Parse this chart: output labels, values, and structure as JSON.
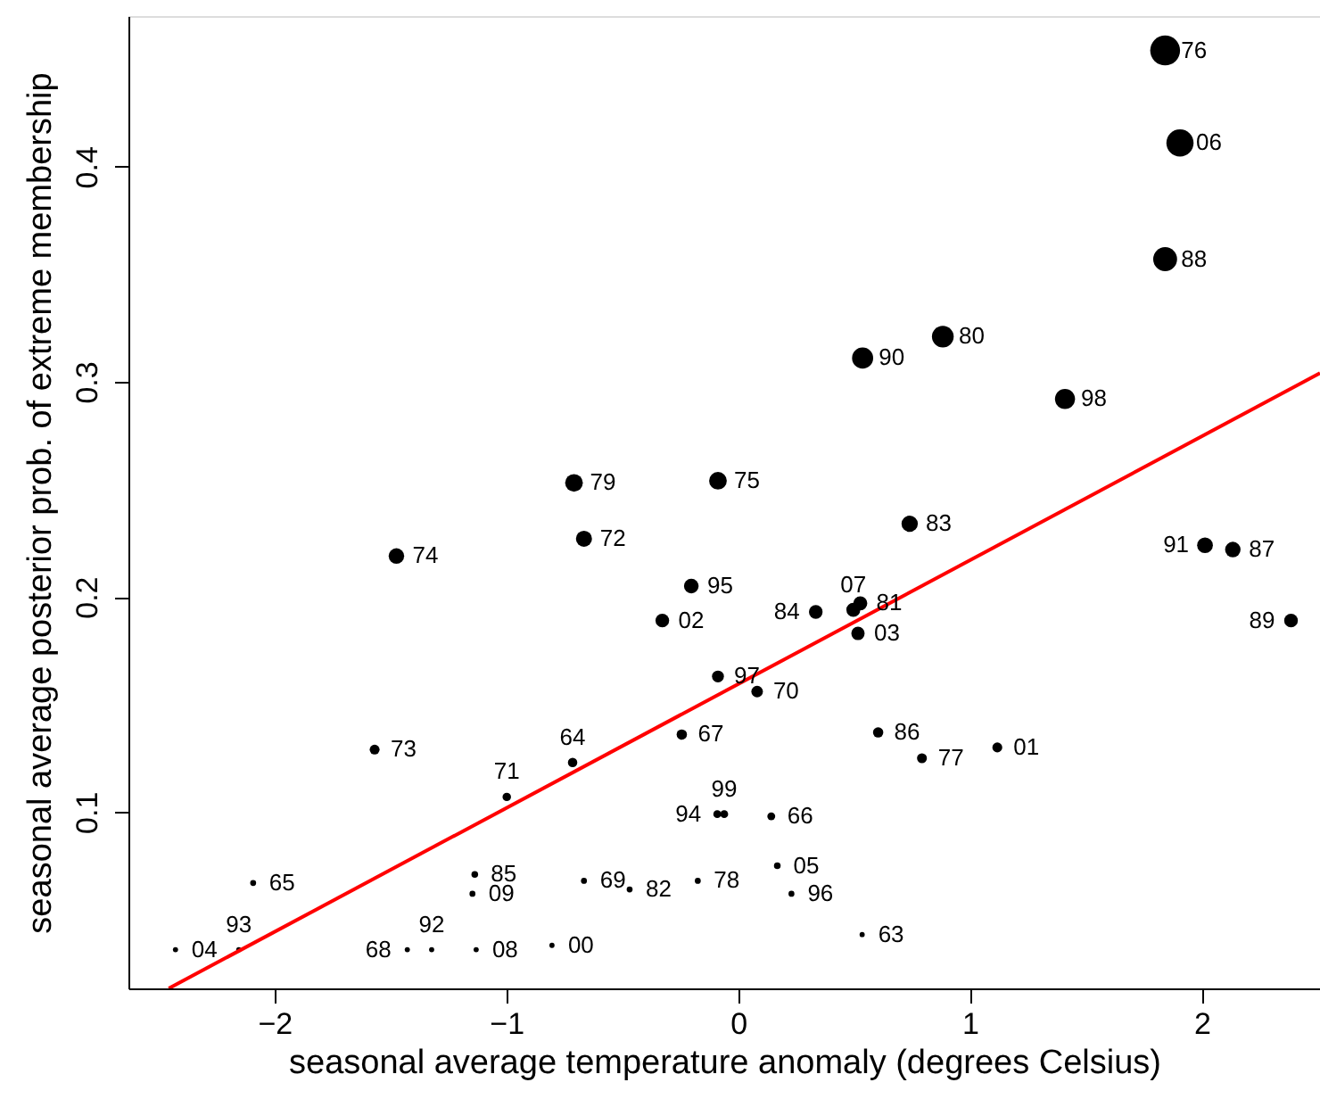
{
  "chart_data": {
    "type": "bubble",
    "xlabel": "seasonal average temperature anomaly (degrees Celsius)",
    "ylabel": "seasonal average posterior prob. of extreme membership",
    "xlim": [
      -2.63,
      2.51
    ],
    "ylim": [
      0.018,
      0.47
    ],
    "xticks": [
      -2,
      -1,
      0,
      1,
      2
    ],
    "yticks": [
      0.1,
      0.2,
      0.3,
      0.4
    ],
    "grid": false,
    "series": [
      {
        "color": "#000000",
        "marker": "circle",
        "x": [
          1.842,
          1.906,
          1.842,
          0.883,
          0.537,
          1.41,
          -0.087,
          -0.708,
          0.74,
          -0.665,
          -1.474,
          2.014,
          2.134,
          -0.202,
          0.497,
          0.527,
          0.335,
          -0.327,
          2.385,
          0.517,
          -0.087,
          0.082,
          0.604,
          -0.243,
          1.118,
          -1.568,
          0.793,
          -0.714,
          -0.998,
          -0.06,
          -0.09,
          0.143,
          0.169,
          -1.136,
          -0.665,
          -0.174,
          -2.092,
          -0.468,
          -1.146,
          0.23,
          0.535,
          -0.803,
          -2.427,
          -1.322,
          -2.154,
          -1.427,
          -1.13
        ],
        "values": [
          0.454,
          0.411,
          0.357,
          0.321,
          0.311,
          0.292,
          0.254,
          0.253,
          0.234,
          0.227,
          0.219,
          0.224,
          0.222,
          0.205,
          0.194,
          0.197,
          0.193,
          0.189,
          0.189,
          0.183,
          0.163,
          0.156,
          0.137,
          0.136,
          0.13,
          0.129,
          0.125,
          0.123,
          0.107,
          0.099,
          0.099,
          0.098,
          0.075,
          0.071,
          0.068,
          0.068,
          0.067,
          0.064,
          0.062,
          0.062,
          0.043,
          0.038,
          0.036,
          0.036,
          0.036,
          0.036,
          0.036
        ],
        "sizes": [
          1,
          0.83,
          0.64,
          0.53,
          0.5,
          0.45,
          0.35,
          0.35,
          0.3,
          0.29,
          0.27,
          0.28,
          0.27,
          0.24,
          0.22,
          0.22,
          0.21,
          0.21,
          0.21,
          0.2,
          0.16,
          0.15,
          0.12,
          0.12,
          0.11,
          0.11,
          0.11,
          0.1,
          0.08,
          0.07,
          0.07,
          0.07,
          0.05,
          0.05,
          0.04,
          0.04,
          0.04,
          0.04,
          0.04,
          0.04,
          0.03,
          0.03,
          0.03,
          0.03,
          0.03,
          0.03,
          0.03
        ]
      },
      {
        "type": "line",
        "color": "#ff0000",
        "x": [
          -2.456,
          2.51
        ],
        "values": [
          0.018,
          0.304
        ]
      }
    ],
    "annotations": [
      {
        "text": "76",
        "x": 1.842,
        "y": 0.454
      },
      {
        "text": "06",
        "x": 1.906,
        "y": 0.411
      },
      {
        "text": "88",
        "x": 1.842,
        "y": 0.357
      },
      {
        "text": "80",
        "x": 0.883,
        "y": 0.321
      },
      {
        "text": "90",
        "x": 0.537,
        "y": 0.311
      },
      {
        "text": "98",
        "x": 1.41,
        "y": 0.292
      },
      {
        "text": "75",
        "x": -0.087,
        "y": 0.254
      },
      {
        "text": "79",
        "x": -0.708,
        "y": 0.253
      },
      {
        "text": "83",
        "x": 0.74,
        "y": 0.234
      },
      {
        "text": "72",
        "x": -0.665,
        "y": 0.227
      },
      {
        "text": "74",
        "x": -1.474,
        "y": 0.219
      },
      {
        "text": "91",
        "x": 2.014,
        "y": 0.224
      },
      {
        "text": "87",
        "x": 2.134,
        "y": 0.222
      },
      {
        "text": "95",
        "x": -0.202,
        "y": 0.205
      },
      {
        "text": "07",
        "x": 0.497,
        "y": 0.194
      },
      {
        "text": "81",
        "x": 0.527,
        "y": 0.197
      },
      {
        "text": "84",
        "x": 0.335,
        "y": 0.193
      },
      {
        "text": "02",
        "x": -0.327,
        "y": 0.189
      },
      {
        "text": "89",
        "x": 2.385,
        "y": 0.189
      },
      {
        "text": "03",
        "x": 0.517,
        "y": 0.183
      },
      {
        "text": "97",
        "x": -0.087,
        "y": 0.163
      },
      {
        "text": "70",
        "x": 0.082,
        "y": 0.156
      },
      {
        "text": "86",
        "x": 0.604,
        "y": 0.137
      },
      {
        "text": "67",
        "x": -0.243,
        "y": 0.136
      },
      {
        "text": "01",
        "x": 1.118,
        "y": 0.13
      },
      {
        "text": "73",
        "x": -1.568,
        "y": 0.129
      },
      {
        "text": "77",
        "x": 0.793,
        "y": 0.125
      },
      {
        "text": "64",
        "x": -0.714,
        "y": 0.123
      },
      {
        "text": "71",
        "x": -0.998,
        "y": 0.107
      },
      {
        "text": "99",
        "x": -0.06,
        "y": 0.099
      },
      {
        "text": "94",
        "x": -0.09,
        "y": 0.099
      },
      {
        "text": "66",
        "x": 0.143,
        "y": 0.098
      },
      {
        "text": "05",
        "x": 0.169,
        "y": 0.075
      },
      {
        "text": "85",
        "x": -1.136,
        "y": 0.071
      },
      {
        "text": "69",
        "x": -0.665,
        "y": 0.068
      },
      {
        "text": "78",
        "x": -0.174,
        "y": 0.068
      },
      {
        "text": "65",
        "x": -2.092,
        "y": 0.067
      },
      {
        "text": "82",
        "x": -0.468,
        "y": 0.064
      },
      {
        "text": "09",
        "x": -1.146,
        "y": 0.062
      },
      {
        "text": "96",
        "x": 0.23,
        "y": 0.062
      },
      {
        "text": "63",
        "x": 0.535,
        "y": 0.043
      },
      {
        "text": "00",
        "x": -0.803,
        "y": 0.038
      },
      {
        "text": "04",
        "x": -2.427,
        "y": 0.036
      },
      {
        "text": "92",
        "x": -1.322,
        "y": 0.036
      },
      {
        "text": "93",
        "x": -2.154,
        "y": 0.036
      },
      {
        "text": "68",
        "x": -1.427,
        "y": 0.036
      },
      {
        "text": "08",
        "x": -1.13,
        "y": 0.036
      }
    ]
  }
}
